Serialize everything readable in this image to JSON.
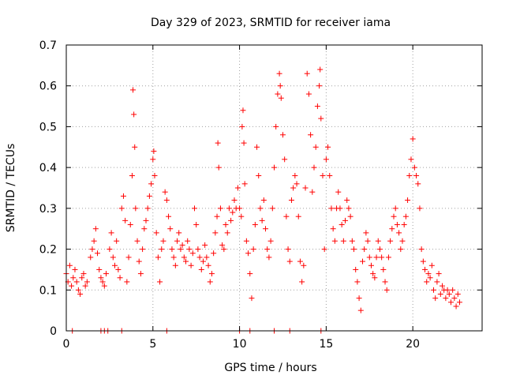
{
  "chart_data": {
    "type": "scatter",
    "title": "Day 329 of 2023, SRMTID for receiver iama",
    "xlabel": "GPS time / hours",
    "ylabel": "SRMTID / TECUs",
    "xlim": [
      0,
      24
    ],
    "ylim": [
      0,
      0.7
    ],
    "xticks": [
      "0",
      "5",
      "10",
      "15",
      "20"
    ],
    "yticks": [
      "0",
      "0.1",
      "0.2",
      "0.3",
      "0.4",
      "0.5",
      "0.6",
      "0.7"
    ],
    "grid": true,
    "marker": "+",
    "marker_color": "#ff0000",
    "series": [
      {
        "name": "SRMTID",
        "points": [
          [
            0.0,
            0.14
          ],
          [
            0.1,
            0.12
          ],
          [
            0.2,
            0.16
          ],
          [
            0.3,
            0.11
          ],
          [
            0.4,
            0.13
          ],
          [
            0.5,
            0.15
          ],
          [
            0.6,
            0.12
          ],
          [
            0.7,
            0.1
          ],
          [
            0.8,
            0.09
          ],
          [
            0.9,
            0.13
          ],
          [
            1.0,
            0.14
          ],
          [
            1.1,
            0.11
          ],
          [
            1.2,
            0.12
          ],
          [
            1.4,
            0.18
          ],
          [
            1.5,
            0.2
          ],
          [
            1.6,
            0.22
          ],
          [
            1.7,
            0.25
          ],
          [
            1.8,
            0.19
          ],
          [
            1.9,
            0.15
          ],
          [
            2.0,
            0.13
          ],
          [
            2.1,
            0.12
          ],
          [
            2.2,
            0.11
          ],
          [
            2.3,
            0.14
          ],
          [
            2.5,
            0.2
          ],
          [
            2.6,
            0.24
          ],
          [
            2.7,
            0.18
          ],
          [
            2.8,
            0.16
          ],
          [
            2.9,
            0.22
          ],
          [
            3.0,
            0.15
          ],
          [
            3.1,
            0.13
          ],
          [
            3.2,
            0.3
          ],
          [
            3.3,
            0.33
          ],
          [
            3.4,
            0.27
          ],
          [
            3.5,
            0.12
          ],
          [
            3.6,
            0.18
          ],
          [
            3.7,
            0.26
          ],
          [
            3.8,
            0.38
          ],
          [
            3.85,
            0.59
          ],
          [
            3.9,
            0.53
          ],
          [
            3.95,
            0.45
          ],
          [
            4.0,
            0.3
          ],
          [
            4.1,
            0.22
          ],
          [
            4.2,
            0.17
          ],
          [
            4.3,
            0.14
          ],
          [
            4.4,
            0.2
          ],
          [
            4.5,
            0.25
          ],
          [
            4.6,
            0.27
          ],
          [
            4.7,
            0.3
          ],
          [
            4.8,
            0.33
          ],
          [
            4.9,
            0.36
          ],
          [
            5.0,
            0.42
          ],
          [
            5.05,
            0.44
          ],
          [
            5.1,
            0.38
          ],
          [
            5.2,
            0.24
          ],
          [
            5.3,
            0.18
          ],
          [
            5.4,
            0.12
          ],
          [
            5.5,
            0.2
          ],
          [
            5.6,
            0.22
          ],
          [
            5.7,
            0.34
          ],
          [
            5.8,
            0.32
          ],
          [
            5.9,
            0.28
          ],
          [
            6.0,
            0.25
          ],
          [
            6.1,
            0.2
          ],
          [
            6.2,
            0.18
          ],
          [
            6.3,
            0.16
          ],
          [
            6.4,
            0.22
          ],
          [
            6.5,
            0.24
          ],
          [
            6.6,
            0.2
          ],
          [
            6.7,
            0.21
          ],
          [
            6.8,
            0.18
          ],
          [
            6.9,
            0.17
          ],
          [
            7.0,
            0.22
          ],
          [
            7.1,
            0.2
          ],
          [
            7.2,
            0.16
          ],
          [
            7.3,
            0.19
          ],
          [
            7.4,
            0.3
          ],
          [
            7.5,
            0.26
          ],
          [
            7.6,
            0.2
          ],
          [
            7.7,
            0.18
          ],
          [
            7.8,
            0.15
          ],
          [
            7.9,
            0.17
          ],
          [
            8.0,
            0.21
          ],
          [
            8.1,
            0.18
          ],
          [
            8.2,
            0.16
          ],
          [
            8.3,
            0.12
          ],
          [
            8.4,
            0.14
          ],
          [
            8.5,
            0.19
          ],
          [
            8.6,
            0.24
          ],
          [
            8.7,
            0.28
          ],
          [
            8.75,
            0.46
          ],
          [
            8.8,
            0.4
          ],
          [
            8.9,
            0.3
          ],
          [
            9.0,
            0.21
          ],
          [
            9.1,
            0.2
          ],
          [
            9.2,
            0.26
          ],
          [
            9.3,
            0.24
          ],
          [
            9.4,
            0.3
          ],
          [
            9.5,
            0.27
          ],
          [
            9.6,
            0.29
          ],
          [
            9.7,
            0.32
          ],
          [
            9.8,
            0.3
          ],
          [
            9.9,
            0.35
          ],
          [
            10.0,
            0.3
          ],
          [
            10.1,
            0.28
          ],
          [
            10.15,
            0.5
          ],
          [
            10.2,
            0.54
          ],
          [
            10.25,
            0.46
          ],
          [
            10.3,
            0.36
          ],
          [
            10.4,
            0.22
          ],
          [
            10.5,
            0.19
          ],
          [
            10.6,
            0.14
          ],
          [
            10.7,
            0.08
          ],
          [
            10.8,
            0.2
          ],
          [
            10.9,
            0.26
          ],
          [
            11.0,
            0.45
          ],
          [
            11.1,
            0.38
          ],
          [
            11.2,
            0.3
          ],
          [
            11.3,
            0.27
          ],
          [
            11.4,
            0.32
          ],
          [
            11.5,
            0.25
          ],
          [
            11.6,
            0.2
          ],
          [
            11.7,
            0.18
          ],
          [
            11.8,
            0.22
          ],
          [
            11.9,
            0.3
          ],
          [
            12.0,
            0.4
          ],
          [
            12.1,
            0.5
          ],
          [
            12.2,
            0.58
          ],
          [
            12.3,
            0.63
          ],
          [
            12.35,
            0.6
          ],
          [
            12.4,
            0.57
          ],
          [
            12.5,
            0.48
          ],
          [
            12.6,
            0.42
          ],
          [
            12.7,
            0.28
          ],
          [
            12.8,
            0.2
          ],
          [
            12.9,
            0.17
          ],
          [
            13.0,
            0.32
          ],
          [
            13.1,
            0.35
          ],
          [
            13.2,
            0.38
          ],
          [
            13.3,
            0.36
          ],
          [
            13.4,
            0.28
          ],
          [
            13.5,
            0.17
          ],
          [
            13.6,
            0.12
          ],
          [
            13.7,
            0.16
          ],
          [
            13.8,
            0.35
          ],
          [
            13.9,
            0.63
          ],
          [
            14.0,
            0.58
          ],
          [
            14.1,
            0.48
          ],
          [
            14.2,
            0.34
          ],
          [
            14.3,
            0.4
          ],
          [
            14.4,
            0.45
          ],
          [
            14.5,
            0.55
          ],
          [
            14.6,
            0.6
          ],
          [
            14.65,
            0.64
          ],
          [
            14.7,
            0.52
          ],
          [
            14.8,
            0.38
          ],
          [
            14.9,
            0.2
          ],
          [
            15.0,
            0.42
          ],
          [
            15.1,
            0.45
          ],
          [
            15.2,
            0.38
          ],
          [
            15.3,
            0.3
          ],
          [
            15.4,
            0.25
          ],
          [
            15.5,
            0.22
          ],
          [
            15.6,
            0.3
          ],
          [
            15.7,
            0.34
          ],
          [
            15.8,
            0.3
          ],
          [
            15.9,
            0.26
          ],
          [
            16.0,
            0.22
          ],
          [
            16.1,
            0.27
          ],
          [
            16.2,
            0.32
          ],
          [
            16.3,
            0.3
          ],
          [
            16.4,
            0.28
          ],
          [
            16.5,
            0.22
          ],
          [
            16.6,
            0.2
          ],
          [
            16.7,
            0.15
          ],
          [
            16.8,
            0.12
          ],
          [
            16.9,
            0.08
          ],
          [
            17.0,
            0.05
          ],
          [
            17.1,
            0.17
          ],
          [
            17.2,
            0.2
          ],
          [
            17.3,
            0.24
          ],
          [
            17.4,
            0.22
          ],
          [
            17.5,
            0.18
          ],
          [
            17.6,
            0.16
          ],
          [
            17.7,
            0.14
          ],
          [
            17.8,
            0.13
          ],
          [
            17.9,
            0.18
          ],
          [
            18.0,
            0.22
          ],
          [
            18.1,
            0.2
          ],
          [
            18.2,
            0.18
          ],
          [
            18.3,
            0.15
          ],
          [
            18.4,
            0.12
          ],
          [
            18.5,
            0.1
          ],
          [
            18.6,
            0.18
          ],
          [
            18.7,
            0.22
          ],
          [
            18.8,
            0.25
          ],
          [
            18.9,
            0.28
          ],
          [
            19.0,
            0.3
          ],
          [
            19.1,
            0.26
          ],
          [
            19.2,
            0.24
          ],
          [
            19.3,
            0.2
          ],
          [
            19.4,
            0.22
          ],
          [
            19.5,
            0.26
          ],
          [
            19.6,
            0.28
          ],
          [
            19.7,
            0.32
          ],
          [
            19.8,
            0.38
          ],
          [
            19.9,
            0.42
          ],
          [
            20.0,
            0.47
          ],
          [
            20.1,
            0.4
          ],
          [
            20.2,
            0.38
          ],
          [
            20.3,
            0.36
          ],
          [
            20.4,
            0.3
          ],
          [
            20.5,
            0.2
          ],
          [
            20.6,
            0.17
          ],
          [
            20.7,
            0.15
          ],
          [
            20.8,
            0.12
          ],
          [
            20.9,
            0.14
          ],
          [
            21.0,
            0.13
          ],
          [
            21.1,
            0.16
          ],
          [
            21.2,
            0.1
          ],
          [
            21.3,
            0.08
          ],
          [
            21.4,
            0.12
          ],
          [
            21.5,
            0.14
          ],
          [
            21.6,
            0.09
          ],
          [
            21.7,
            0.11
          ],
          [
            21.8,
            0.1
          ],
          [
            21.9,
            0.08
          ],
          [
            22.0,
            0.1
          ],
          [
            22.1,
            0.09
          ],
          [
            22.2,
            0.07
          ],
          [
            22.3,
            0.1
          ],
          [
            22.4,
            0.08
          ],
          [
            22.5,
            0.06
          ],
          [
            22.6,
            0.09
          ],
          [
            22.7,
            0.07
          ]
        ]
      }
    ],
    "zero_marks_x": [
      0.35,
      2.0,
      2.2,
      2.4,
      3.2,
      5.8,
      10.0,
      10.6,
      12.0,
      12.9,
      14.7
    ]
  }
}
